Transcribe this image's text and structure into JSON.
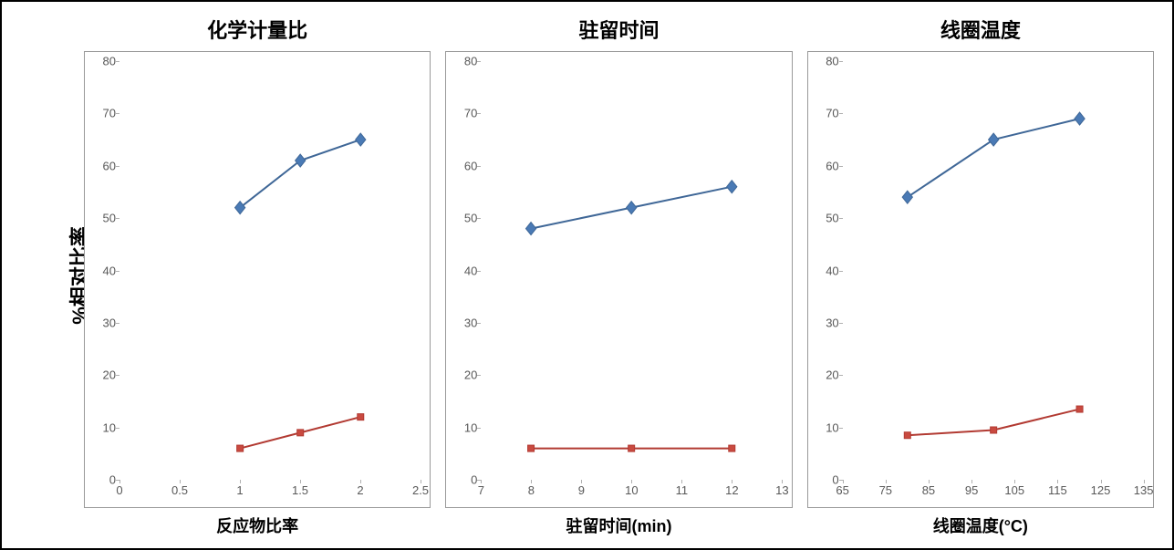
{
  "global_y_label": "%相对比率",
  "styling": {
    "frame_border_color": "#000000",
    "plot_border_color": "#999999",
    "tick_label_color": "#585858",
    "tick_label_fontsize_pt": 10,
    "title_fontsize_pt": 16,
    "xlabel_fontsize_pt": 14,
    "background_color": "#ffffff"
  },
  "series_styles": {
    "blue": {
      "stroke": "#3f6797",
      "marker_fill": "#4a7ab5",
      "marker": "diamond",
      "marker_size": 7,
      "line_width": 2
    },
    "red": {
      "stroke": "#b23a32",
      "marker_fill": "#c94a40",
      "marker": "square",
      "marker_size": 7,
      "line_width": 2
    }
  },
  "panels": [
    {
      "title": "化学计量比",
      "xlabel": "反应物比率",
      "type": "line",
      "xlim": [
        0,
        2.5
      ],
      "ylim": [
        0,
        80
      ],
      "xticks": [
        0,
        0.5,
        1,
        1.5,
        2,
        2.5
      ],
      "yticks": [
        0,
        10,
        20,
        30,
        40,
        50,
        60,
        70,
        80
      ],
      "series": [
        {
          "style": "blue",
          "data": [
            [
              1,
              52
            ],
            [
              1.5,
              61
            ],
            [
              2,
              65
            ]
          ]
        },
        {
          "style": "red",
          "data": [
            [
              1,
              6
            ],
            [
              1.5,
              9
            ],
            [
              2,
              12
            ]
          ]
        }
      ]
    },
    {
      "title": "驻留时间",
      "xlabel": "驻留时间(min)",
      "type": "line",
      "xlim": [
        7,
        13
      ],
      "ylim": [
        0,
        80
      ],
      "xticks": [
        7,
        8,
        9,
        10,
        11,
        12,
        13
      ],
      "yticks": [
        0,
        10,
        20,
        30,
        40,
        50,
        60,
        70,
        80
      ],
      "series": [
        {
          "style": "blue",
          "data": [
            [
              8,
              48
            ],
            [
              10,
              52
            ],
            [
              12,
              56
            ]
          ]
        },
        {
          "style": "red",
          "data": [
            [
              8,
              6
            ],
            [
              10,
              6
            ],
            [
              12,
              6
            ]
          ]
        }
      ]
    },
    {
      "title": "线圈温度",
      "xlabel": "线圈温度(°C)",
      "type": "line",
      "xlim": [
        65,
        135
      ],
      "ylim": [
        0,
        80
      ],
      "xticks": [
        65,
        75,
        85,
        95,
        105,
        115,
        125,
        135
      ],
      "yticks": [
        0,
        10,
        20,
        30,
        40,
        50,
        60,
        70,
        80
      ],
      "series": [
        {
          "style": "blue",
          "data": [
            [
              80,
              54
            ],
            [
              100,
              65
            ],
            [
              120,
              69
            ]
          ]
        },
        {
          "style": "red",
          "data": [
            [
              80,
              8.5
            ],
            [
              100,
              9.5
            ],
            [
              120,
              13.5
            ]
          ]
        }
      ]
    }
  ]
}
